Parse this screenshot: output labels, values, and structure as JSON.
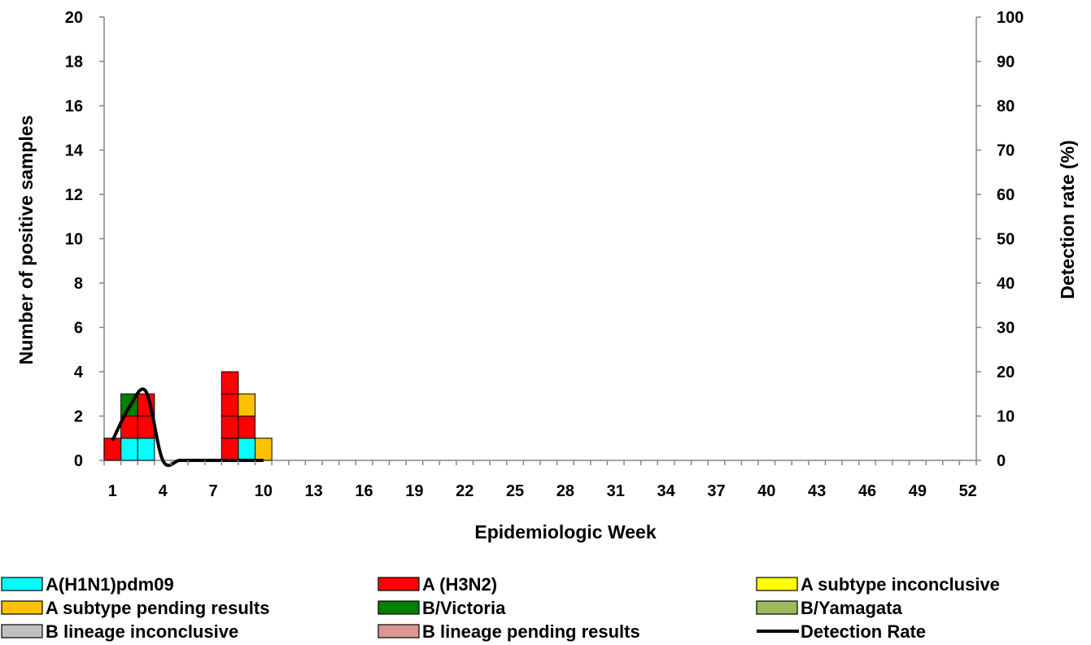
{
  "chart_data": {
    "type": "bar",
    "stacked": true,
    "xlabel": "Epidemiologic Week",
    "ylabel": "Number of positive samples",
    "y2label": "Detection rate (%)",
    "x_categories": [
      1,
      2,
      3,
      4,
      5,
      6,
      7,
      8,
      9,
      10,
      11,
      12,
      13,
      14,
      15,
      16,
      17,
      18,
      19,
      20,
      21,
      22,
      23,
      24,
      25,
      26,
      27,
      28,
      29,
      30,
      31,
      32,
      33,
      34,
      35,
      36,
      37,
      38,
      39,
      40,
      41,
      42,
      43,
      44,
      45,
      46,
      47,
      48,
      49,
      50,
      51,
      52
    ],
    "x_tick_labels": [
      "1",
      "4",
      "7",
      "10",
      "13",
      "16",
      "19",
      "22",
      "25",
      "28",
      "31",
      "34",
      "37",
      "40",
      "43",
      "46",
      "49",
      "52"
    ],
    "ylim": [
      0,
      20
    ],
    "y_ticks": [
      "0",
      "2",
      "4",
      "6",
      "8",
      "10",
      "12",
      "14",
      "16",
      "18",
      "20"
    ],
    "y2lim": [
      0,
      100
    ],
    "y2_ticks": [
      "0",
      "10",
      "20",
      "30",
      "40",
      "50",
      "60",
      "70",
      "80",
      "90",
      "100"
    ],
    "grid": false,
    "legend_position": "bottom",
    "series": [
      {
        "name": "A(H1N1)pdm09",
        "color": "#00ffff",
        "values": {
          "2": 1,
          "3": 1,
          "9": 1
        }
      },
      {
        "name": "A (H3N2)",
        "color": "#ff0000",
        "values": {
          "1": 1,
          "2": 1,
          "3": 2,
          "8": 4,
          "9": 1
        }
      },
      {
        "name": "A subtype inconclusive",
        "color": "#ffff00",
        "values": {}
      },
      {
        "name": "A subtype pending results",
        "color": "#ffc000",
        "values": {
          "9": 1,
          "10": 1
        }
      },
      {
        "name": "B/Victoria",
        "color": "#008000",
        "values": {
          "2": 1
        }
      },
      {
        "name": "B/Yamagata",
        "color": "#9bbb59",
        "values": {}
      },
      {
        "name": "B lineage inconclusive",
        "color": "#bfbfbf",
        "values": {}
      },
      {
        "name": "B lineage pending results",
        "color": "#d99694",
        "values": {}
      }
    ],
    "line_series": {
      "name": "Detection Rate",
      "color": "#000000",
      "axis": "right",
      "x": [
        1,
        2,
        3,
        4,
        5,
        6,
        7,
        8,
        9,
        10
      ],
      "y": [
        4.5,
        12,
        15.5,
        0,
        0,
        0,
        0,
        0,
        0,
        0
      ]
    }
  }
}
